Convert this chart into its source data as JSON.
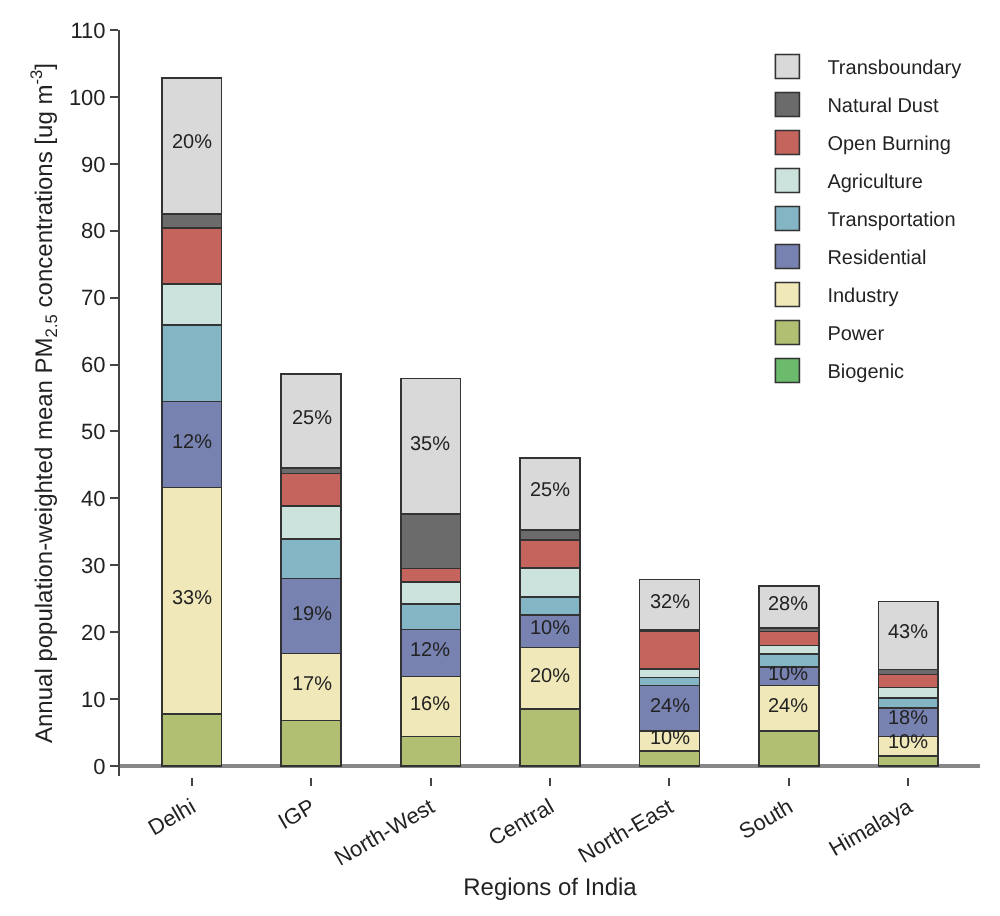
{
  "chart_data": {
    "type": "bar",
    "stacked": true,
    "xlabel": "Regions of India",
    "ylabel": "Annual population-weighted mean PM$_{2.5}$ concentrations [ug m$^{-3}$]",
    "categories": [
      "Delhi",
      "IGP",
      "North-West",
      "Central",
      "North-East",
      "South",
      "Himalaya"
    ],
    "ylim": [
      -1.5,
      110
    ],
    "yticks": [
      0,
      10,
      20,
      30,
      40,
      50,
      60,
      70,
      80,
      90,
      100,
      110
    ],
    "grid": false,
    "legend": "top right",
    "series": [
      {
        "name": "Biogenic",
        "color": "#6cbb6c",
        "values": [
          null,
          null,
          null,
          null,
          null,
          null,
          null
        ]
      },
      {
        "name": "Power",
        "color": "#b1bf72",
        "values": [
          7.8,
          6.8,
          4.4,
          8.5,
          2.2,
          5.2,
          1.5
        ]
      },
      {
        "name": "Industry",
        "color": "#f0e8b8",
        "values": [
          33.8,
          10.0,
          9.0,
          9.2,
          3.0,
          6.8,
          2.9
        ]
      },
      {
        "name": "Residential",
        "color": "#7782b0",
        "values": [
          12.9,
          11.2,
          7.0,
          4.9,
          6.8,
          2.8,
          4.3
        ]
      },
      {
        "name": "Transportation",
        "color": "#84b5c4",
        "values": [
          11.4,
          5.9,
          3.8,
          2.7,
          1.2,
          1.9,
          1.5
        ]
      },
      {
        "name": "Agriculture",
        "color": "#cce3dd",
        "values": [
          6.1,
          5.0,
          3.3,
          4.3,
          1.3,
          1.3,
          1.5
        ]
      },
      {
        "name": "Open Burning",
        "color": "#c4645c",
        "values": [
          8.4,
          4.8,
          2.0,
          4.2,
          5.6,
          2.1,
          2.0
        ]
      },
      {
        "name": "Natural Dust",
        "color": "#6b6b6b",
        "values": [
          2.1,
          0.8,
          8.2,
          1.5,
          0.2,
          0.5,
          0.7
        ]
      },
      {
        "name": "Transboundary",
        "color": "#d9d9d9",
        "values": [
          20.3,
          14.1,
          20.2,
          10.7,
          7.6,
          6.3,
          10.2
        ]
      }
    ],
    "annotations": [
      {
        "text": "33%",
        "x": "Delhi",
        "y": 25.0
      },
      {
        "text": "12%",
        "x": "Delhi",
        "y": 48.4
      },
      {
        "text": "20%",
        "x": "Delhi",
        "y": 93.0
      },
      {
        "text": "17%",
        "x": "IGP",
        "y": 12.1
      },
      {
        "text": "19%",
        "x": "IGP",
        "y": 22.7
      },
      {
        "text": "25%",
        "x": "IGP",
        "y": 51.9
      },
      {
        "text": "16%",
        "x": "North-West",
        "y": 9.2
      },
      {
        "text": "12%",
        "x": "North-West",
        "y": 17.2
      },
      {
        "text": "35%",
        "x": "North-West",
        "y": 48.1
      },
      {
        "text": "20%",
        "x": "Central",
        "y": 13.4
      },
      {
        "text": "10%",
        "x": "Central",
        "y": 20.5
      },
      {
        "text": "25%",
        "x": "Central",
        "y": 41.0
      },
      {
        "text": "10%",
        "x": "North-East",
        "y": 4.0
      },
      {
        "text": "24%",
        "x": "North-East",
        "y": 8.9
      },
      {
        "text": "32%",
        "x": "North-East",
        "y": 24.4
      },
      {
        "text": "24%",
        "x": "South",
        "y": 8.9
      },
      {
        "text": "10%",
        "x": "South",
        "y": 13.7
      },
      {
        "text": "28%",
        "x": "South",
        "y": 24.1
      },
      {
        "text": "10%",
        "x": "Himalaya",
        "y": 3.3
      },
      {
        "text": "18%",
        "x": "Himalaya",
        "y": 6.9
      },
      {
        "text": "43%",
        "x": "Himalaya",
        "y": 19.8
      }
    ]
  }
}
